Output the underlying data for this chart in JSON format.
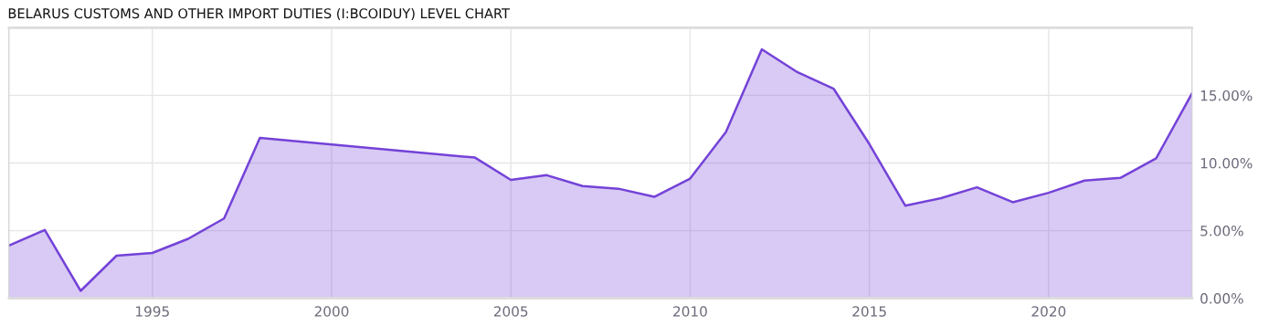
{
  "chart_data": {
    "type": "area",
    "title": "BELARUS CUSTOMS AND OTHER IMPORT DUTIES (I:BCOIDUY) LEVEL CHART",
    "x": [
      1991,
      1992,
      1993,
      1994,
      1995,
      1996,
      1997,
      1998,
      2004,
      2005,
      2006,
      2007,
      2008,
      2009,
      2010,
      2011,
      2012,
      2013,
      2014,
      2015,
      2016,
      2017,
      2018,
      2019,
      2020,
      2021,
      2022,
      2023,
      2024
    ],
    "series": [
      {
        "color": "#7442d8",
        "values": [
          3.9,
          5.05,
          0.55,
          3.15,
          3.35,
          4.4,
          5.9,
          11.85,
          10.4,
          8.75,
          9.1,
          8.3,
          8.1,
          7.5,
          8.85,
          12.3,
          18.4,
          16.7,
          15.5,
          11.4,
          6.85,
          7.4,
          8.2,
          7.1,
          7.8,
          8.7,
          8.9,
          10.35,
          15.15
        ]
      }
    ],
    "xlim": [
      1991,
      2024
    ],
    "xticks": [
      1995,
      2000,
      2005,
      2010,
      2015,
      2020
    ],
    "ylim": [
      0,
      20
    ],
    "yticks": [
      {
        "value": 0,
        "label": "0.00%"
      },
      {
        "value": 5,
        "label": "5.00%"
      },
      {
        "value": 10,
        "label": "10.00%"
      },
      {
        "value": 15,
        "label": "15.00%"
      }
    ],
    "grid": true,
    "legend": false,
    "marker": "none",
    "line_style": "solid"
  }
}
